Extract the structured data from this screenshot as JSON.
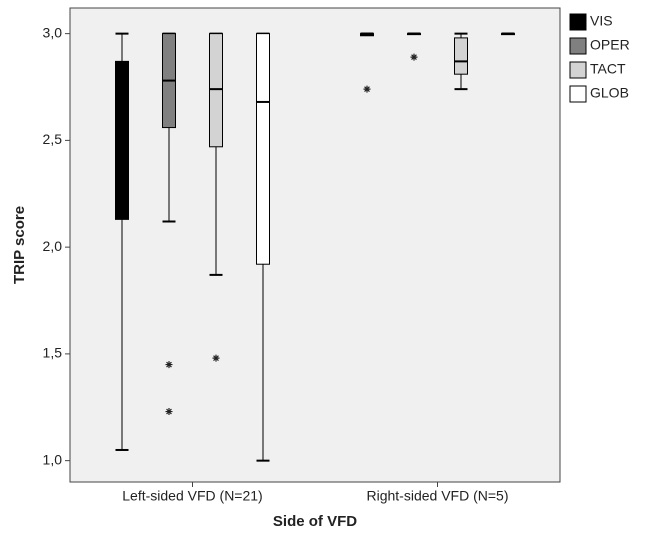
{
  "chart_data": {
    "type": "boxplot",
    "x_label": "Side of VFD",
    "y_label": "TRIP score",
    "categories": [
      "Left-sided VFD (N=21)",
      "Right-sided VFD (N=5)"
    ],
    "ylim": [
      0.9,
      3.12
    ],
    "yticks": [
      {
        "value": 1.0,
        "label": "1,0"
      },
      {
        "value": 1.5,
        "label": "1,5"
      },
      {
        "value": 2.0,
        "label": "2,0"
      },
      {
        "value": 2.5,
        "label": "2,5"
      },
      {
        "value": 3.0,
        "label": "3,0"
      }
    ],
    "series": [
      {
        "name": "VIS",
        "color": "#000000",
        "min": [
          1.05,
          3.0
        ],
        "q1": [
          2.13,
          2.99
        ],
        "median": [
          2.6,
          3.0
        ],
        "q3": [
          2.87,
          3.0
        ],
        "max": [
          3.0,
          3.0
        ],
        "outliers": [
          [],
          [
            2.74
          ]
        ]
      },
      {
        "name": "OPER",
        "color": "#808080",
        "min": [
          2.12,
          3.0
        ],
        "q1": [
          2.56,
          3.0
        ],
        "median": [
          2.78,
          3.0
        ],
        "q3": [
          3.0,
          3.0
        ],
        "max": [
          3.0,
          3.0
        ],
        "outliers": [
          [
            1.45,
            1.23
          ],
          [
            2.89
          ]
        ]
      },
      {
        "name": "TACT",
        "color": "#d3d3d3",
        "min": [
          1.87,
          2.74
        ],
        "q1": [
          2.47,
          2.81
        ],
        "median": [
          2.74,
          2.87
        ],
        "q3": [
          3.0,
          2.98
        ],
        "max": [
          3.0,
          3.0
        ],
        "outliers": [
          [
            1.48
          ],
          []
        ]
      },
      {
        "name": "GLOB",
        "color": "#ffffff",
        "min": [
          1.0,
          3.0
        ],
        "q1": [
          1.92,
          3.0
        ],
        "median": [
          2.68,
          3.0
        ],
        "q3": [
          3.0,
          3.0
        ],
        "max": [
          3.0,
          3.0
        ],
        "outliers": [
          [],
          []
        ]
      }
    ],
    "legend": "right"
  }
}
